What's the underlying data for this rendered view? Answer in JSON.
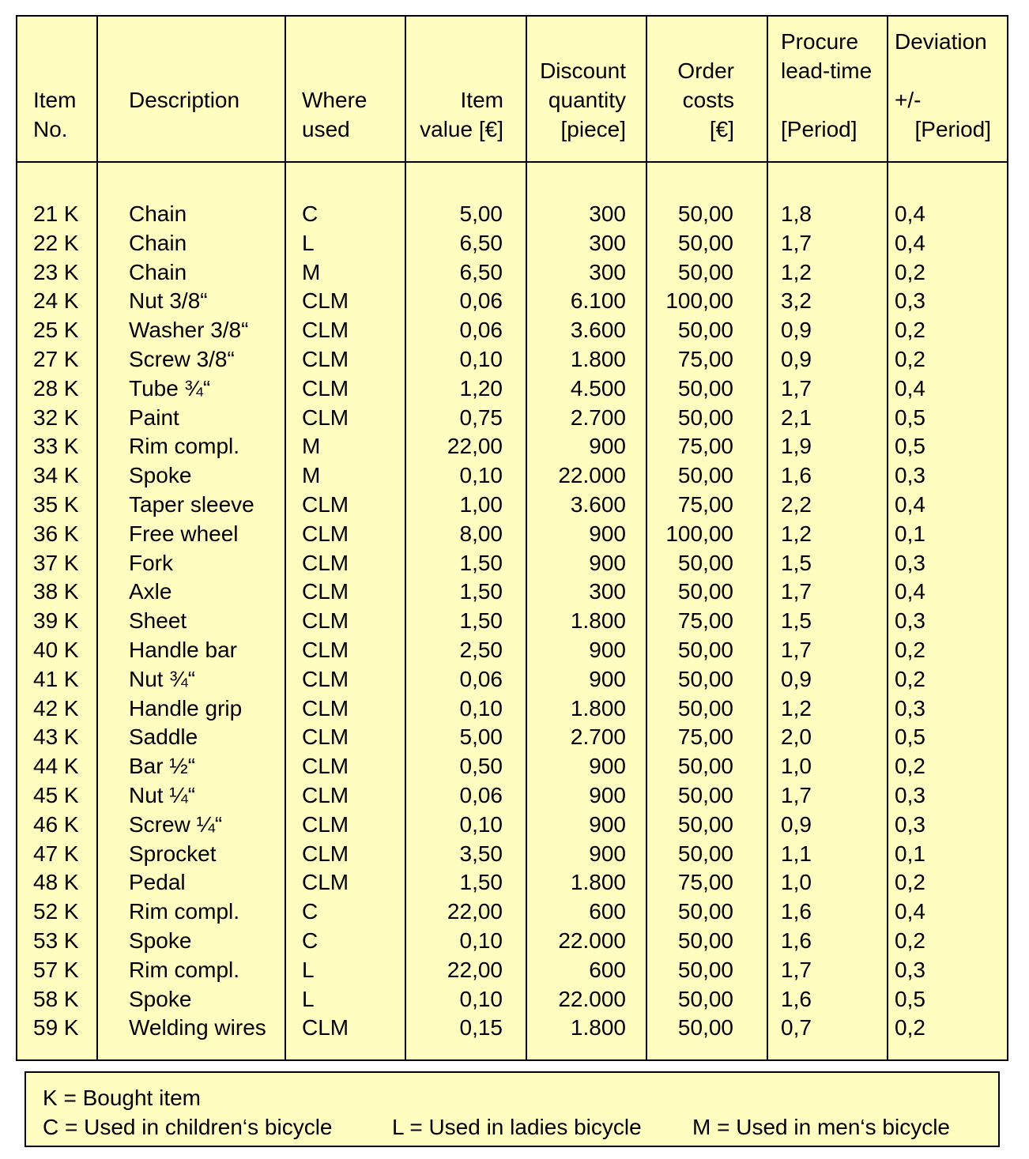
{
  "headers": {
    "item_no": "Item\nNo.",
    "description": "Description",
    "where_used": "Where\nused",
    "item_value": "Item\nvalue [€]",
    "discount_quantity": "Discount\nquantity\n[piece]",
    "order_costs": "Order\ncosts\n[€]",
    "procure_lead_time": "Procure\nlead-time\n\n[Period]",
    "deviation_title": "Deviation",
    "deviation_sign": "+/-",
    "deviation_unit": "[Period]"
  },
  "rows": [
    {
      "item": "21 K",
      "desc": "Chain",
      "used": "C",
      "value": "5,00",
      "qty": "300",
      "cost": "50,00",
      "lead": "1,8",
      "dev": "0,4"
    },
    {
      "item": "22 K",
      "desc": "Chain",
      "used": "L",
      "value": "6,50",
      "qty": "300",
      "cost": "50,00",
      "lead": "1,7",
      "dev": "0,4"
    },
    {
      "item": "23 K",
      "desc": "Chain",
      "used": "M",
      "value": "6,50",
      "qty": "300",
      "cost": "50,00",
      "lead": "1,2",
      "dev": "0,2"
    },
    {
      "item": "24 K",
      "desc": "Nut 3/8“",
      "used": "CLM",
      "value": "0,06",
      "qty": "6.100",
      "cost": "100,00",
      "lead": "3,2",
      "dev": "0,3"
    },
    {
      "item": "25 K",
      "desc": "Washer 3/8“",
      "used": "CLM",
      "value": "0,06",
      "qty": "3.600",
      "cost": "50,00",
      "lead": "0,9",
      "dev": "0,2"
    },
    {
      "item": "27 K",
      "desc": "Screw 3/8“",
      "used": "CLM",
      "value": "0,10",
      "qty": "1.800",
      "cost": "75,00",
      "lead": "0,9",
      "dev": "0,2"
    },
    {
      "item": "28 K",
      "desc": "Tube ¾“",
      "used": "CLM",
      "value": "1,20",
      "qty": "4.500",
      "cost": "50,00",
      "lead": "1,7",
      "dev": "0,4"
    },
    {
      "item": "32 K",
      "desc": "Paint",
      "used": "CLM",
      "value": "0,75",
      "qty": "2.700",
      "cost": "50,00",
      "lead": "2,1",
      "dev": "0,5"
    },
    {
      "item": "33 K",
      "desc": "Rim compl.",
      "used": "M",
      "value": "22,00",
      "qty": "900",
      "cost": "75,00",
      "lead": "1,9",
      "dev": "0,5"
    },
    {
      "item": "34 K",
      "desc": "Spoke",
      "used": "M",
      "value": "0,10",
      "qty": "22.000",
      "cost": "50,00",
      "lead": "1,6",
      "dev": "0,3"
    },
    {
      "item": "35 K",
      "desc": "Taper sleeve",
      "used": "CLM",
      "value": "1,00",
      "qty": "3.600",
      "cost": "75,00",
      "lead": "2,2",
      "dev": "0,4"
    },
    {
      "item": "36 K",
      "desc": "Free wheel",
      "used": "CLM",
      "value": "8,00",
      "qty": "900",
      "cost": "100,00",
      "lead": "1,2",
      "dev": "0,1"
    },
    {
      "item": "37 K",
      "desc": "Fork",
      "used": "CLM",
      "value": "1,50",
      "qty": "900",
      "cost": "50,00",
      "lead": "1,5",
      "dev": "0,3"
    },
    {
      "item": "38 K",
      "desc": "Axle",
      "used": "CLM",
      "value": "1,50",
      "qty": "300",
      "cost": "50,00",
      "lead": "1,7",
      "dev": "0,4"
    },
    {
      "item": "39 K",
      "desc": "Sheet",
      "used": "CLM",
      "value": "1,50",
      "qty": "1.800",
      "cost": "75,00",
      "lead": "1,5",
      "dev": "0,3"
    },
    {
      "item": "40 K",
      "desc": "Handle bar",
      "used": "CLM",
      "value": "2,50",
      "qty": "900",
      "cost": "50,00",
      "lead": "1,7",
      "dev": "0,2"
    },
    {
      "item": "41 K",
      "desc": "Nut ¾“",
      "used": "CLM",
      "value": "0,06",
      "qty": "900",
      "cost": "50,00",
      "lead": "0,9",
      "dev": "0,2"
    },
    {
      "item": "42 K",
      "desc": "Handle grip",
      "used": "CLM",
      "value": "0,10",
      "qty": "1.800",
      "cost": "50,00",
      "lead": "1,2",
      "dev": "0,3"
    },
    {
      "item": "43 K",
      "desc": "Saddle",
      "used": "CLM",
      "value": "5,00",
      "qty": "2.700",
      "cost": "75,00",
      "lead": "2,0",
      "dev": "0,5"
    },
    {
      "item": "44 K",
      "desc": "Bar ½“",
      "used": "CLM",
      "value": "0,50",
      "qty": "900",
      "cost": "50,00",
      "lead": "1,0",
      "dev": "0,2"
    },
    {
      "item": "45 K",
      "desc": "Nut ¼“",
      "used": "CLM",
      "value": "0,06",
      "qty": "900",
      "cost": "50,00",
      "lead": "1,7",
      "dev": "0,3"
    },
    {
      "item": "46 K",
      "desc": "Screw ¼“",
      "used": "CLM",
      "value": "0,10",
      "qty": "900",
      "cost": "50,00",
      "lead": "0,9",
      "dev": "0,3"
    },
    {
      "item": "47 K",
      "desc": "Sprocket",
      "used": "CLM",
      "value": "3,50",
      "qty": "900",
      "cost": "50,00",
      "lead": "1,1",
      "dev": "0,1"
    },
    {
      "item": "48 K",
      "desc": "Pedal",
      "used": "CLM",
      "value": "1,50",
      "qty": "1.800",
      "cost": "75,00",
      "lead": "1,0",
      "dev": "0,2"
    },
    {
      "item": "52 K",
      "desc": "Rim compl.",
      "used": "C",
      "value": "22,00",
      "qty": "600",
      "cost": "50,00",
      "lead": "1,6",
      "dev": "0,4"
    },
    {
      "item": "53 K",
      "desc": "Spoke",
      "used": "C",
      "value": "0,10",
      "qty": "22.000",
      "cost": "50,00",
      "lead": "1,6",
      "dev": "0,2"
    },
    {
      "item": "57 K",
      "desc": "Rim compl.",
      "used": "L",
      "value": "22,00",
      "qty": "600",
      "cost": "50,00",
      "lead": "1,7",
      "dev": "0,3"
    },
    {
      "item": "58 K",
      "desc": "Spoke",
      "used": "L",
      "value": "0,10",
      "qty": "22.000",
      "cost": "50,00",
      "lead": "1,6",
      "dev": "0,5"
    },
    {
      "item": "59 K",
      "desc": "Welding wires",
      "used": "CLM",
      "value": "0,15",
      "qty": "1.800",
      "cost": "50,00",
      "lead": "0,7",
      "dev": "0,2"
    }
  ],
  "legend": {
    "line1": "K = Bought item",
    "children": "C = Used in children‘s bicycle",
    "ladies": "L = Used in ladies bicycle",
    "men": "M = Used in men‘s bicycle"
  }
}
